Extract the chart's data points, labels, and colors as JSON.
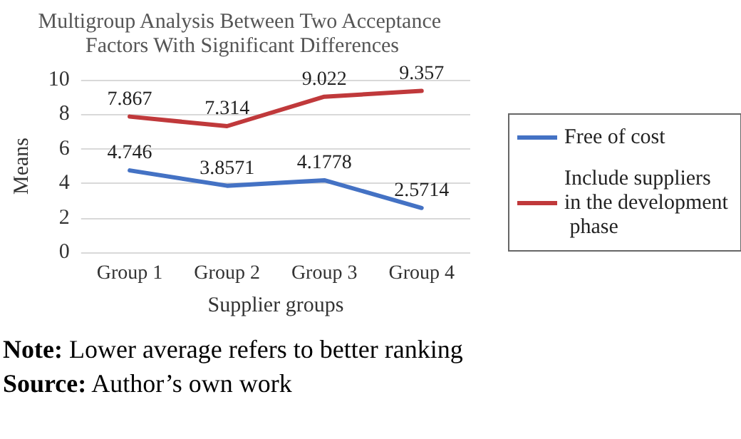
{
  "chart_data": {
    "type": "line",
    "title": "Multigroup Analysis Between Two Acceptance Factors With Significant Differences",
    "xlabel": "Supplier groups",
    "ylabel": "Means",
    "categories": [
      "Group 1",
      "Group 2",
      "Group 3",
      "Group 4"
    ],
    "series": [
      {
        "name": "Free of cost",
        "color": "#4472c4",
        "values": [
          4.746,
          3.8571,
          4.1778,
          2.5714
        ]
      },
      {
        "name": "Include suppliers in the development phase",
        "color": "#c0393b",
        "values": [
          7.867,
          7.314,
          9.022,
          9.357
        ]
      }
    ],
    "ylim": [
      0,
      10
    ],
    "yticks": [
      0,
      2,
      4,
      6,
      8,
      10
    ],
    "grid": "y",
    "legend": "right",
    "marker": "none",
    "data_labels": true,
    "annotations": [
      "Note: Lower average refers to better ranking",
      "Source: Author’s own work"
    ]
  }
}
